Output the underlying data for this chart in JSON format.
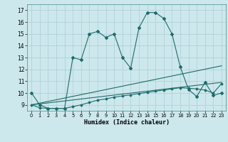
{
  "xlabel": "Humidex (Indice chaleur)",
  "xlim": [
    -0.5,
    23.5
  ],
  "ylim": [
    8.5,
    17.5
  ],
  "yticks": [
    9,
    10,
    11,
    12,
    13,
    14,
    15,
    16,
    17
  ],
  "xticks": [
    0,
    1,
    2,
    3,
    4,
    5,
    6,
    7,
    8,
    9,
    10,
    11,
    12,
    13,
    14,
    15,
    16,
    17,
    18,
    19,
    20,
    21,
    22,
    23
  ],
  "bg_color": "#cde8ec",
  "grid_color": "#a8cdd4",
  "line_color": "#1e6b6b",
  "series1_x": [
    0,
    1,
    2,
    3,
    4,
    5,
    6,
    7,
    8,
    9,
    10,
    11,
    12,
    13,
    14,
    15,
    16,
    17,
    18,
    19,
    20,
    21,
    22,
    23
  ],
  "series1_y": [
    10.0,
    9.0,
    8.7,
    8.7,
    8.7,
    13.0,
    12.8,
    15.0,
    15.2,
    14.7,
    15.0,
    13.0,
    12.1,
    15.5,
    16.8,
    16.8,
    16.3,
    15.0,
    12.2,
    10.3,
    9.7,
    10.9,
    9.8,
    10.0
  ],
  "series2_x": [
    0,
    1,
    2,
    3,
    4,
    5,
    6,
    7,
    8,
    9,
    10,
    11,
    12,
    13,
    14,
    15,
    16,
    17,
    18,
    19,
    20,
    21,
    22,
    23
  ],
  "series2_y": [
    9.0,
    8.75,
    8.7,
    8.7,
    8.7,
    8.85,
    9.0,
    9.2,
    9.4,
    9.5,
    9.65,
    9.75,
    9.85,
    9.95,
    10.05,
    10.15,
    10.25,
    10.35,
    10.45,
    10.4,
    10.35,
    10.25,
    10.0,
    10.8
  ],
  "series3_x": [
    0,
    23
  ],
  "series3_y": [
    9.0,
    12.3
  ],
  "series4_x": [
    0,
    23
  ],
  "series4_y": [
    9.0,
    10.9
  ]
}
